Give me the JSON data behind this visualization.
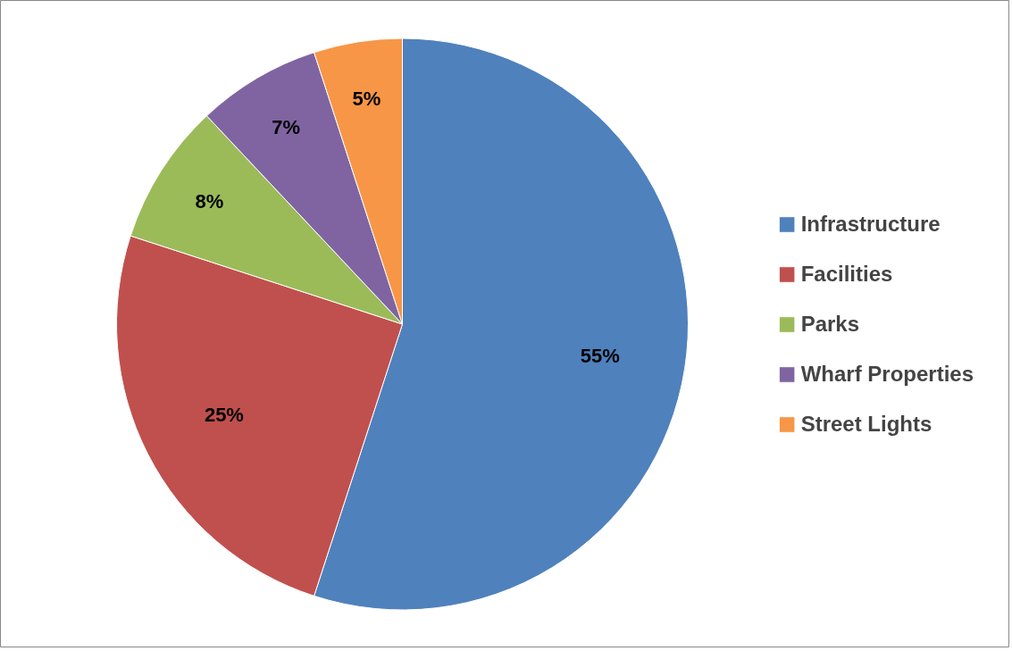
{
  "chart_data": {
    "type": "pie",
    "categories": [
      "Infrastructure",
      "Facilities",
      "Parks",
      "Wharf Properties",
      "Street Lights"
    ],
    "values": [
      55,
      25,
      8,
      7,
      5
    ],
    "colors": [
      "#4f81bd",
      "#c0504d",
      "#9bbb59",
      "#8064a2",
      "#f79646"
    ],
    "value_labels": [
      "55%",
      "25%",
      "8%",
      "7%",
      "5%"
    ],
    "legend": "right"
  }
}
